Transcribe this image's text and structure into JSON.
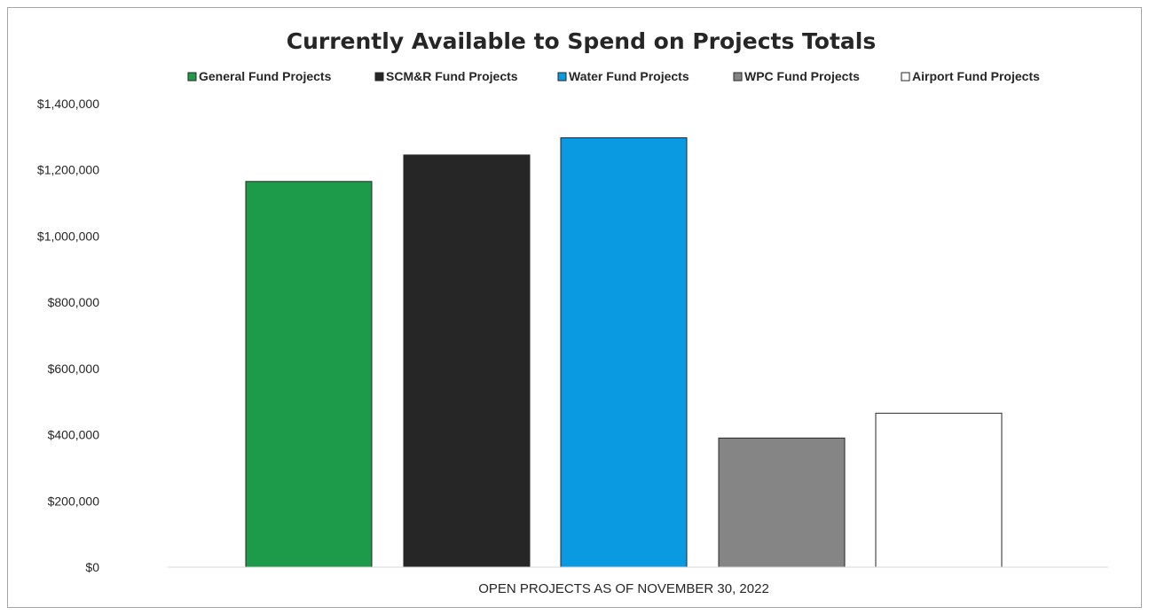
{
  "chart_data": {
    "type": "bar",
    "title": "Currently Available to Spend on Projects Totals",
    "xlabel": "OPEN PROJECTS AS OF NOVEMBER 30, 2022",
    "ylabel": "",
    "ylim": [
      0,
      1400000
    ],
    "yticks": [
      0,
      200000,
      400000,
      600000,
      800000,
      1000000,
      1200000,
      1400000
    ],
    "ytick_labels": [
      "$0",
      "$200,000",
      "$400,000",
      "$600,000",
      "$800,000",
      "$1,000,000",
      "$1,200,000",
      "$1,400,000"
    ],
    "grid": false,
    "legend_position": "top",
    "series": [
      {
        "name": "General Fund Projects",
        "value": 1165000,
        "color": "#1e9a4b"
      },
      {
        "name": "SCM&R Fund Projects",
        "value": 1245000,
        "color": "#262626"
      },
      {
        "name": "Water Fund Projects",
        "value": 1297000,
        "color": "#0a9ae2"
      },
      {
        "name": "WPC Fund Projects",
        "value": 390000,
        "color": "#858585"
      },
      {
        "name": "Airport Fund Projects",
        "value": 465000,
        "color": "#ffffff"
      }
    ]
  }
}
